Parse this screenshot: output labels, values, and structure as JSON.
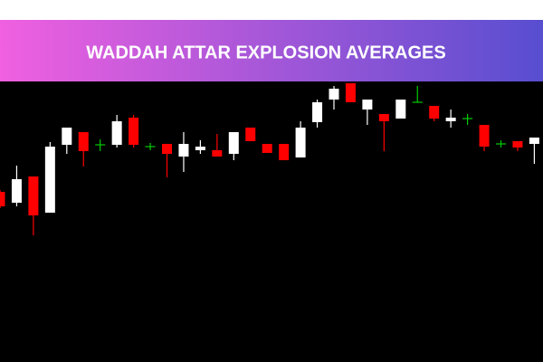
{
  "chart_data": {
    "type": "candlestick",
    "title": "WADDAH ATTAR EXPLOSION AVERAGES",
    "open": [
      188,
      176,
      205,
      165,
      240,
      254,
      240,
      240,
      270,
      238,
      241,
      227,
      234,
      234,
      230,
      259,
      241,
      241,
      226,
      265,
      290,
      308,
      279,
      274,
      269,
      287,
      283,
      266,
      269,
      262,
      241,
      244,
      241
    ],
    "high": [
      190,
      217,
      205,
      243,
      259,
      254,
      246,
      273,
      273,
      242,
      241,
      254,
      245,
      252,
      254,
      259,
      241,
      241,
      266,
      290,
      305,
      308,
      290,
      274,
      290,
      305,
      283,
      279,
      274,
      262,
      245,
      244,
      248
    ],
    "low": [
      170,
      172,
      140,
      165,
      230,
      216,
      233,
      237,
      237,
      234,
      204,
      210,
      230,
      227,
      223,
      244,
      231,
      223,
      226,
      259,
      279,
      287,
      262,
      233,
      269,
      287,
      266,
      259,
      262,
      233,
      237,
      233,
      219
    ],
    "close": [
      172,
      202,
      162,
      238,
      259,
      233,
      240,
      266,
      240,
      238,
      230,
      241,
      238,
      227,
      254,
      244,
      231,
      223,
      259,
      287,
      302,
      287,
      290,
      266,
      290,
      287,
      269,
      270,
      269,
      238,
      241,
      237,
      248
    ],
    "colors": {
      "up": "#ffffff",
      "down": "#ff0000",
      "flat": "#00cc00"
    },
    "ylim": [
      0,
      400
    ]
  }
}
